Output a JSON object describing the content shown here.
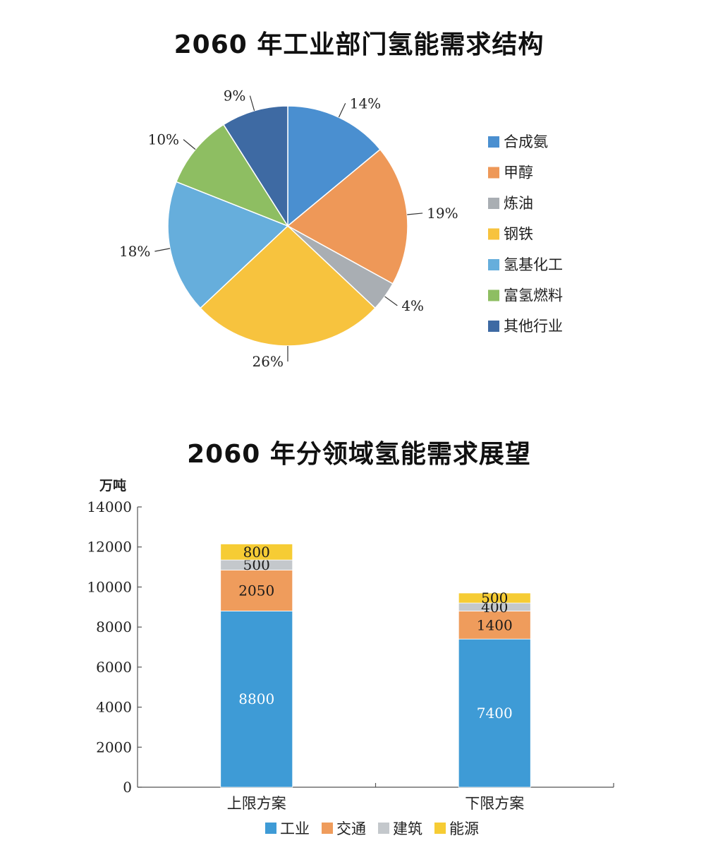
{
  "chart_data": [
    {
      "type": "pie",
      "title": "2060 年工业部门氢能需求结构",
      "legend_position": "right",
      "slices": [
        {
          "label": "合成氨",
          "value": 14,
          "display": "14%",
          "color": "#4a8fd0"
        },
        {
          "label": "甲醇",
          "value": 19,
          "display": "19%",
          "color": "#ee9858"
        },
        {
          "label": "炼油",
          "value": 4,
          "display": "4%",
          "color": "#a9aeb3"
        },
        {
          "label": "钢铁",
          "value": 26,
          "display": "26%",
          "color": "#f7c33e"
        },
        {
          "label": "氢基化工",
          "value": 18,
          "display": "18%",
          "color": "#66aedc"
        },
        {
          "label": "富氢燃料",
          "value": 10,
          "display": "10%",
          "color": "#8ebe62"
        },
        {
          "label": "其他行业",
          "value": 9,
          "display": "9%",
          "color": "#3e6aa3"
        }
      ]
    },
    {
      "type": "bar",
      "stacked": true,
      "title": "2060 年分领域氢能需求展望",
      "ylabel": "万吨",
      "ylim": [
        0,
        14000
      ],
      "yticks": [
        "0",
        "2000",
        "4000",
        "6000",
        "8000",
        "10000",
        "12000",
        "14000"
      ],
      "categories": [
        "上限方案",
        "下限方案"
      ],
      "legend_position": "bottom",
      "series": [
        {
          "name": "工业",
          "values": [
            8800,
            7400
          ],
          "color": "#3e9bd6"
        },
        {
          "name": "交通",
          "values": [
            2050,
            1400
          ],
          "color": "#ef9c5c"
        },
        {
          "name": "建筑",
          "values": [
            500,
            400
          ],
          "color": "#c4c8cc"
        },
        {
          "name": "能源",
          "values": [
            800,
            500
          ],
          "color": "#f6cc34"
        }
      ]
    }
  ]
}
